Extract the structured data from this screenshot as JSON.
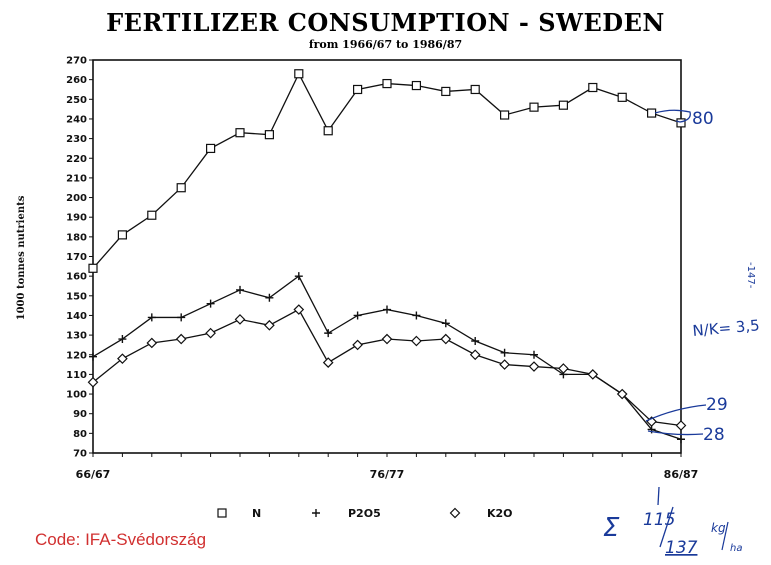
{
  "chart_data": {
    "type": "line",
    "title": "FERTILIZER CONSUMPTION  -  SWEDEN",
    "subtitle": "from 1966/67 to 1986/87",
    "ylabel": "1000 tonnes nutrients",
    "ylim": [
      70,
      270
    ],
    "yticks": [
      70,
      80,
      90,
      100,
      110,
      120,
      130,
      140,
      150,
      160,
      170,
      180,
      190,
      200,
      210,
      220,
      230,
      240,
      250,
      260,
      270
    ],
    "x": [
      "66/67",
      "67/68",
      "68/69",
      "69/70",
      "70/71",
      "71/72",
      "72/73",
      "73/74",
      "74/75",
      "75/76",
      "76/77",
      "77/78",
      "78/79",
      "79/80",
      "80/81",
      "81/82",
      "82/83",
      "83/84",
      "84/85",
      "85/86",
      "86/87"
    ],
    "xtick_labels": [
      "66/67",
      "76/77",
      "86/87"
    ],
    "series": [
      {
        "name": "N",
        "marker": "square",
        "values": [
          164,
          181,
          191,
          205,
          225,
          233,
          232,
          263,
          234,
          255,
          258,
          257,
          254,
          255,
          242,
          246,
          247,
          256,
          251,
          243,
          238
        ]
      },
      {
        "name": "P2O5",
        "marker": "plus",
        "values": [
          119,
          128,
          139,
          139,
          146,
          153,
          149,
          160,
          131,
          140,
          143,
          140,
          136,
          127,
          121,
          120,
          110,
          110,
          100,
          82,
          77
        ]
      },
      {
        "name": "K2O",
        "marker": "diamond",
        "values": [
          106,
          118,
          126,
          128,
          131,
          138,
          135,
          143,
          116,
          125,
          128,
          127,
          128,
          120,
          115,
          114,
          113,
          110,
          100,
          86,
          84
        ]
      }
    ],
    "legend_position": "bottom",
    "grid": false
  },
  "annotations": {
    "n_end": "80",
    "ratio": "N/K= 3,5",
    "k_end": "29",
    "p_end": "28",
    "page_mark": "-147-",
    "sum_symbol": "Σ",
    "sum_top": "115",
    "sum_bottom": "137",
    "units_kg": "kg",
    "units_ha": "ha"
  },
  "footer": {
    "code": "Code: IFA-Svédország"
  }
}
